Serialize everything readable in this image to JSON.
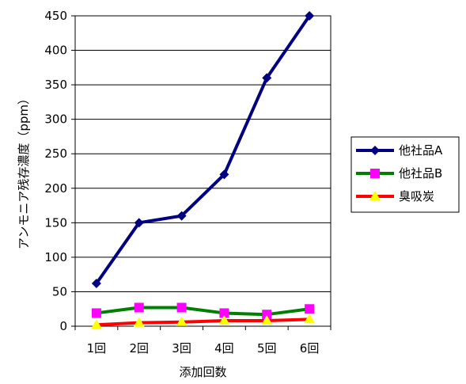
{
  "chart_data": {
    "type": "line",
    "categories": [
      "1回",
      "2回",
      "3回",
      "4回",
      "5回",
      "6回"
    ],
    "xlabel": "添加回数",
    "ylabel": "アンモニア残存濃度（ppm）",
    "ylim": [
      0,
      450
    ],
    "yticks": [
      0,
      50,
      100,
      150,
      200,
      250,
      300,
      350,
      400,
      450
    ],
    "grid": true,
    "legend_position": "right",
    "series": [
      {
        "name": "他社品A",
        "values": [
          62,
          150,
          160,
          220,
          360,
          450
        ],
        "color": "#000080",
        "marker": "diamond",
        "marker_color": "#000080"
      },
      {
        "name": "他社品B",
        "values": [
          19,
          27,
          27,
          19,
          17,
          25
        ],
        "color": "#008000",
        "marker": "square",
        "marker_color": "#ff00ff"
      },
      {
        "name": "臭吸炭",
        "values": [
          2,
          5,
          6,
          8,
          8,
          10
        ],
        "color": "#ff0000",
        "marker": "triangle",
        "marker_color": "#ffff00"
      }
    ]
  }
}
